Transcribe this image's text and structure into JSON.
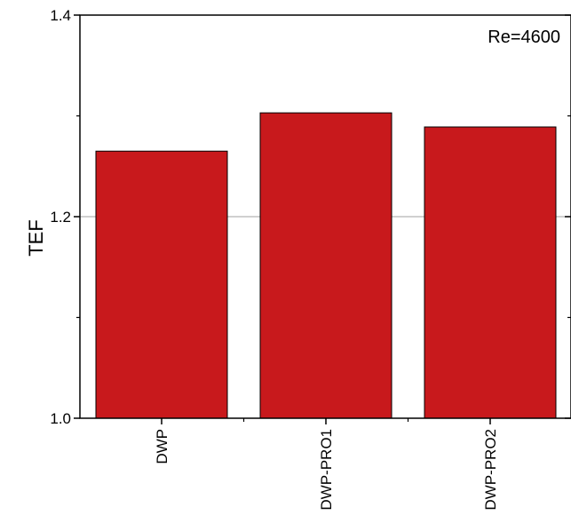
{
  "chart_data": {
    "type": "bar",
    "categories": [
      "DWP",
      "DWP-PRO1",
      "DWP-PRO2"
    ],
    "values": [
      1.265,
      1.303,
      1.289
    ],
    "xlabel": "",
    "ylabel": "TEF",
    "ylim": [
      1.0,
      1.4
    ],
    "y_ticks": [
      "1.0",
      "1.2",
      "1.4"
    ],
    "annotation": "Re=4600",
    "grid": "horizontal",
    "colors": {
      "bar_fill": "#c8191c",
      "bar_stroke": "#000000",
      "gridline": "#b3b3b3",
      "axis": "#000000"
    }
  }
}
